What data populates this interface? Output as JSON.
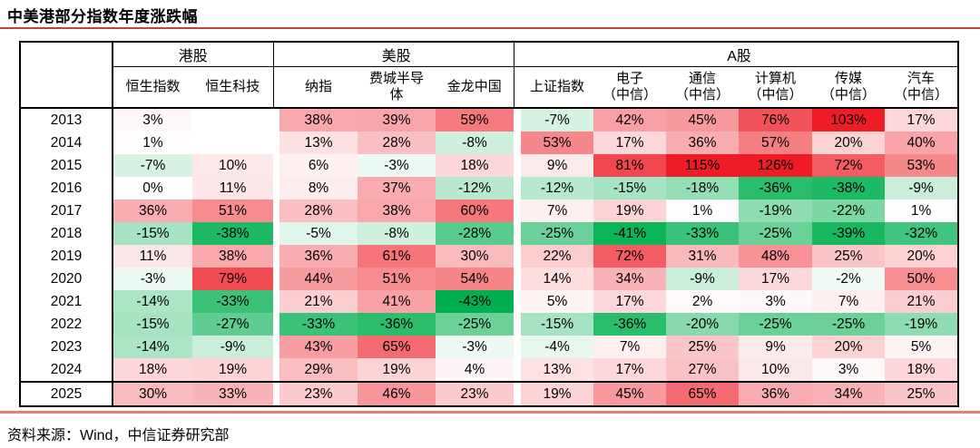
{
  "accent": {
    "title_rule_color": "#c0443c",
    "footer_rule_color": "#df817c"
  },
  "footer": {
    "source_label": "资料来源：Wind，中信证券研究部"
  },
  "chart_data": {
    "type": "heatmap",
    "title": "中美港部分指数年度涨跌幅",
    "unit": "%",
    "legend_position": "none",
    "grid": false,
    "groups": [
      {
        "label": "港股",
        "columns": [
          {
            "name": "恒生指数",
            "sub": ""
          },
          {
            "name": "恒生科技",
            "sub": ""
          }
        ]
      },
      {
        "label": "美股",
        "columns": [
          {
            "name": "纳指",
            "sub": ""
          },
          {
            "name": "费城半导体",
            "sub": ""
          },
          {
            "name": "金龙中国",
            "sub": ""
          }
        ]
      },
      {
        "label": "A股",
        "columns": [
          {
            "name": "上证指数",
            "sub": ""
          },
          {
            "name": "电子",
            "sub": "（中信）"
          },
          {
            "name": "通信",
            "sub": "（中信）"
          },
          {
            "name": "计算机",
            "sub": "（中信）"
          },
          {
            "name": "传媒",
            "sub": "（中信）"
          },
          {
            "name": "汽车",
            "sub": "（中信）"
          }
        ]
      }
    ],
    "rows": [
      {
        "year": "2013",
        "values": [
          3,
          null,
          38,
          39,
          59,
          -7,
          42,
          45,
          76,
          103,
          17
        ]
      },
      {
        "year": "2014",
        "values": [
          1,
          null,
          13,
          28,
          -8,
          53,
          17,
          36,
          57,
          20,
          40
        ]
      },
      {
        "year": "2015",
        "values": [
          -7,
          10,
          6,
          -3,
          18,
          9,
          81,
          115,
          126,
          72,
          53
        ]
      },
      {
        "year": "2016",
        "values": [
          0,
          11,
          8,
          37,
          -12,
          -12,
          -15,
          -18,
          -36,
          -38,
          -9
        ]
      },
      {
        "year": "2017",
        "values": [
          36,
          51,
          28,
          38,
          60,
          7,
          19,
          1,
          -19,
          -22,
          1
        ]
      },
      {
        "year": "2018",
        "values": [
          -15,
          -38,
          -5,
          -8,
          -28,
          -25,
          -41,
          -33,
          -25,
          -39,
          -32
        ]
      },
      {
        "year": "2019",
        "values": [
          11,
          38,
          36,
          61,
          30,
          22,
          72,
          31,
          48,
          25,
          20
        ]
      },
      {
        "year": "2020",
        "values": [
          -3,
          79,
          44,
          51,
          54,
          14,
          34,
          -9,
          17,
          -2,
          50
        ]
      },
      {
        "year": "2021",
        "values": [
          -14,
          -33,
          21,
          41,
          -43,
          5,
          17,
          2,
          3,
          7,
          21
        ]
      },
      {
        "year": "2022",
        "values": [
          -15,
          -27,
          -33,
          -36,
          -25,
          -15,
          -36,
          -20,
          -25,
          -25,
          -19
        ]
      },
      {
        "year": "2023",
        "values": [
          -14,
          -9,
          43,
          65,
          -3,
          -4,
          7,
          25,
          9,
          20,
          5
        ]
      },
      {
        "year": "2024",
        "values": [
          18,
          19,
          29,
          19,
          4,
          13,
          17,
          27,
          10,
          3,
          18
        ]
      },
      {
        "year": "2025",
        "values": [
          30,
          33,
          23,
          46,
          23,
          19,
          45,
          65,
          36,
          34,
          25
        ]
      }
    ],
    "color_scale": {
      "zero": "#ffffff",
      "positive_max": "#ee1c25",
      "negative_max": "#00b050",
      "positive_clamp": 100,
      "negative_clamp": 43
    }
  }
}
